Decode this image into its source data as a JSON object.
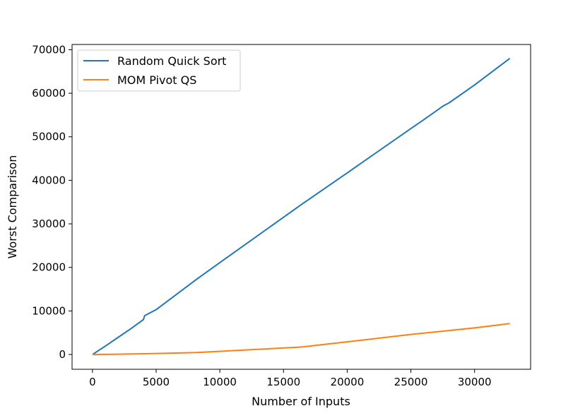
{
  "chart_data": {
    "type": "line",
    "title": "",
    "xlabel": "Number of Inputs",
    "ylabel": "Worst Comparison",
    "xlim": [
      -1600,
      34400
    ],
    "ylim": [
      -3400,
      71200
    ],
    "xticks": [
      0,
      5000,
      10000,
      15000,
      20000,
      25000,
      30000
    ],
    "yticks": [
      0,
      10000,
      20000,
      30000,
      40000,
      50000,
      60000,
      70000
    ],
    "grid": false,
    "legend_position": "top-left",
    "series": [
      {
        "name": "Random Quick Sort",
        "color": "#1f77b4",
        "x": [
          2,
          1000,
          2000,
          3000,
          4000,
          4096,
          5000,
          8192,
          10000,
          16384,
          20000,
          25000,
          26000,
          27500,
          28000,
          30000,
          32768
        ],
        "y": [
          0,
          1900,
          3900,
          5900,
          8000,
          8900,
          10300,
          17300,
          21100,
          34400,
          41700,
          51900,
          53900,
          57000,
          57800,
          61900,
          68000
        ]
      },
      {
        "name": "MOM Pivot QS",
        "color": "#ff7f0e",
        "x": [
          2,
          1000,
          2048,
          4096,
          8192,
          16384,
          20000,
          25000,
          30000,
          32768
        ],
        "y": [
          0,
          20,
          60,
          160,
          450,
          1700,
          2900,
          4600,
          6100,
          7100
        ]
      }
    ]
  }
}
